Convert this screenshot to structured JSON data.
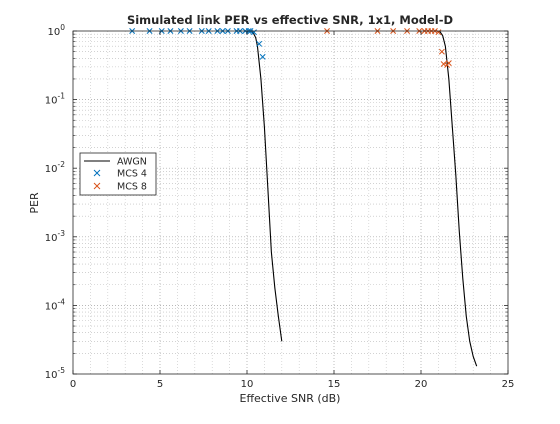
{
  "chart_data": {
    "type": "line",
    "title": "Simulated link PER vs effective SNR, 1x1, Model-D",
    "xlabel": "Effective SNR (dB)",
    "ylabel": "PER",
    "xlim": [
      0,
      25
    ],
    "ylim": [
      1e-05,
      1
    ],
    "yscale": "log",
    "grid": true,
    "legend_placement": "left-middle",
    "x_ticks": [
      0,
      5,
      10,
      15,
      20,
      25
    ],
    "y_ticks": [
      {
        "value": 1,
        "mantissa": "10",
        "exp": "0"
      },
      {
        "value": 0.1,
        "mantissa": "10",
        "exp": "-1"
      },
      {
        "value": 0.01,
        "mantissa": "10",
        "exp": "-2"
      },
      {
        "value": 0.001,
        "mantissa": "10",
        "exp": "-3"
      },
      {
        "value": 0.0001,
        "mantissa": "10",
        "exp": "-4"
      },
      {
        "value": 1e-05,
        "mantissa": "10",
        "exp": "-5"
      }
    ],
    "series": [
      {
        "name": "AWGN",
        "style": "line",
        "color": "#000000",
        "segments": [
          {
            "x": [
              10.0,
              10.2,
              10.35,
              10.5,
              10.6,
              10.8,
              11.0,
              11.2,
              11.4,
              11.6,
              11.8,
              12.0
            ],
            "y": [
              1.0,
              0.99,
              0.95,
              0.8,
              0.6,
              0.2,
              0.04,
              0.005,
              0.0006,
              0.00018,
              7e-05,
              3e-05
            ]
          },
          {
            "x": [
              20.9,
              21.1,
              21.25,
              21.4,
              21.6,
              21.8,
              22.0,
              22.2,
              22.4,
              22.6,
              22.8,
              23.0,
              23.2
            ],
            "y": [
              1.0,
              0.97,
              0.85,
              0.6,
              0.2,
              0.04,
              0.008,
              0.0012,
              0.00025,
              7e-05,
              3e-05,
              1.8e-05,
              1.3e-05
            ]
          }
        ]
      },
      {
        "name": "MCS 4",
        "style": "marker",
        "marker": "x",
        "color": "#0072BD",
        "x": [
          3.4,
          4.4,
          5.1,
          5.6,
          6.2,
          6.7,
          7.4,
          7.8,
          8.3,
          8.6,
          8.9,
          9.4,
          9.6,
          9.9,
          10.1,
          10.2,
          10.4,
          10.7,
          10.9
        ],
        "y": [
          1,
          1,
          1,
          1,
          1,
          1,
          1,
          1,
          1,
          1,
          1,
          1,
          1,
          1,
          1,
          1,
          0.96,
          0.65,
          0.42
        ]
      },
      {
        "name": "MCS 8",
        "style": "marker",
        "marker": "x",
        "color": "#D95319",
        "x": [
          14.6,
          17.5,
          18.4,
          19.2,
          19.9,
          20.2,
          20.4,
          20.6,
          20.8,
          21.0,
          21.2,
          21.3,
          21.5,
          21.6
        ],
        "y": [
          1,
          1,
          1,
          1,
          1,
          1,
          1,
          1,
          1,
          0.96,
          0.5,
          0.33,
          0.32,
          0.34
        ]
      }
    ]
  }
}
